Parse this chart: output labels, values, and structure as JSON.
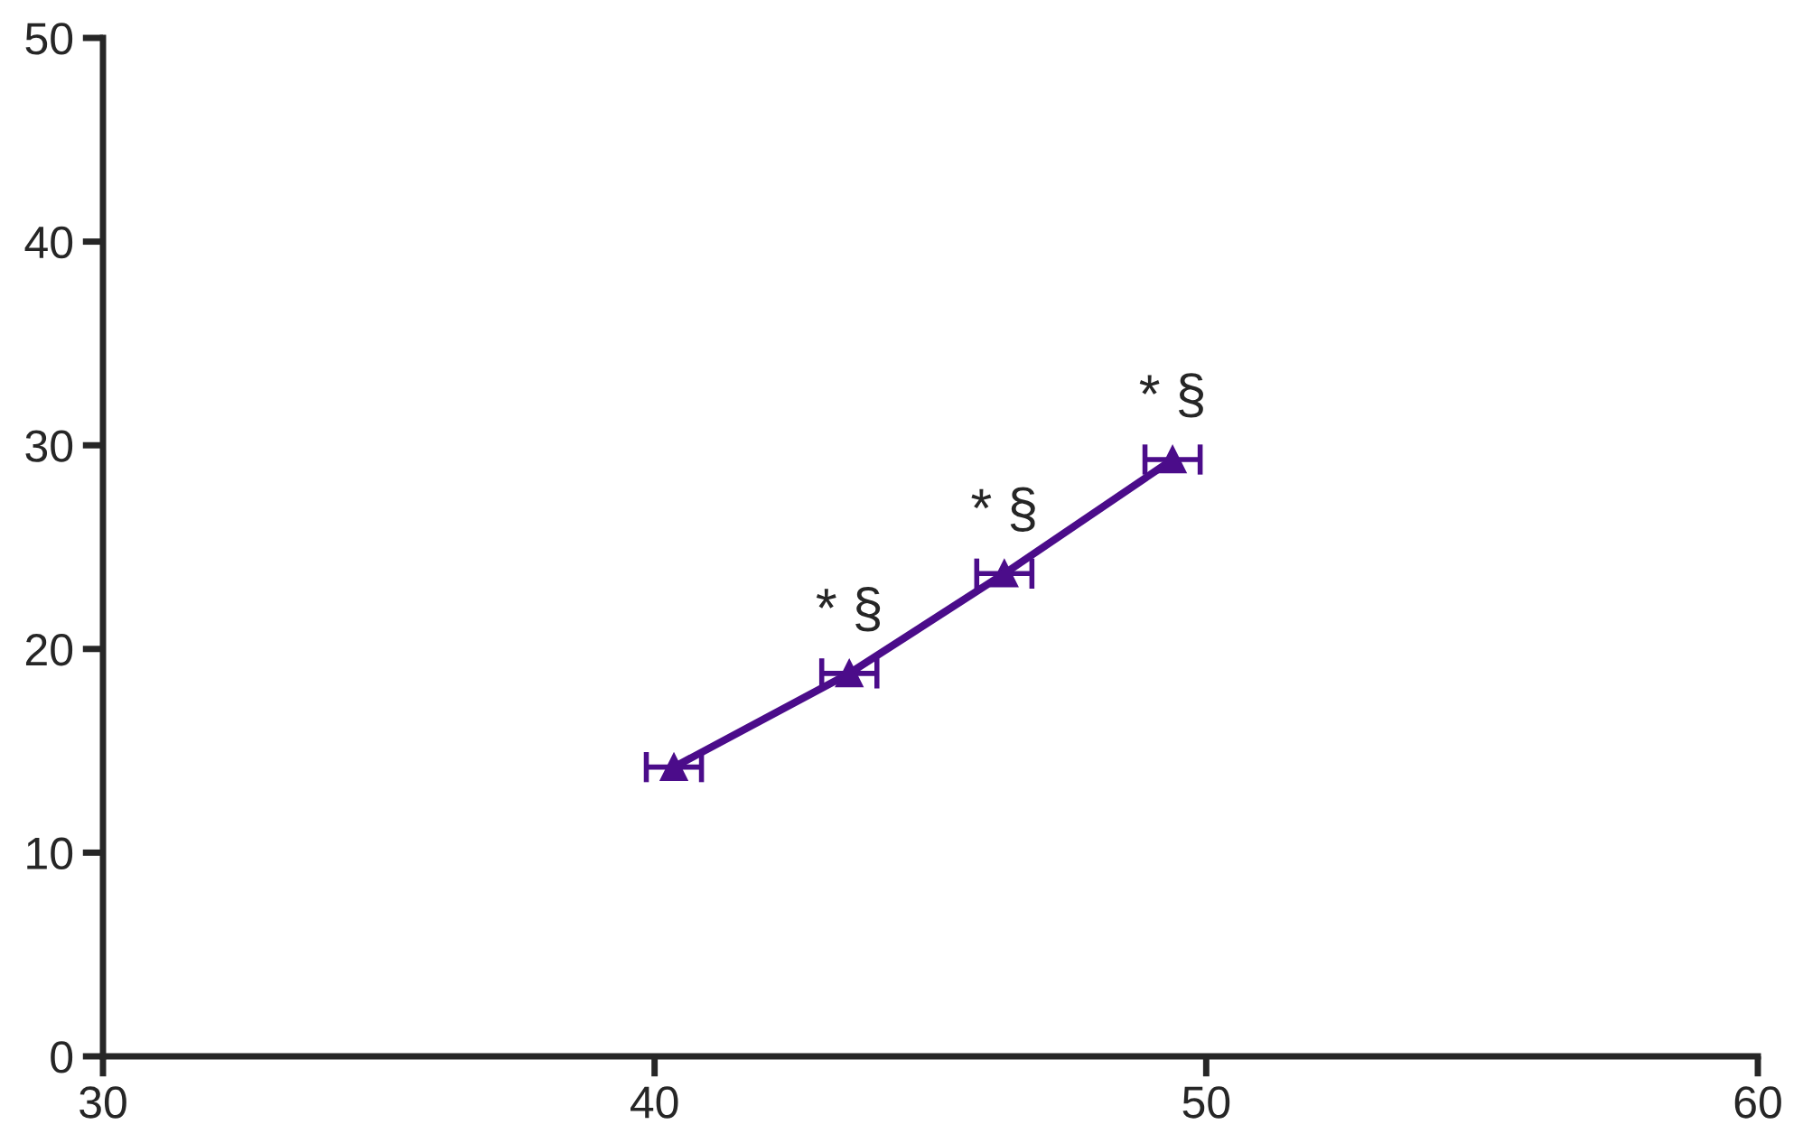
{
  "chart_data": {
    "type": "line",
    "x": [
      40.35,
      43.53,
      46.34,
      49.39
    ],
    "series": [
      {
        "color": "#4b0c8a",
        "values": [
          14.2,
          18.8,
          23.7,
          29.3
        ],
        "xerrors": [
          0.5,
          0.5,
          0.5,
          0.5
        ]
      }
    ],
    "xlim": [
      30,
      60
    ],
    "xticks": [
      30,
      40,
      50,
      60
    ],
    "ylim": [
      0,
      50
    ],
    "yticks": [
      0,
      10,
      20,
      30,
      40,
      50
    ],
    "marker": "triangle",
    "line_style": "solid",
    "grid": false,
    "annotations": [
      {
        "text": "* §",
        "x": 43.53,
        "y": 18.8
      },
      {
        "text": "* §",
        "x": 46.34,
        "y": 23.7
      },
      {
        "text": "* §",
        "x": 49.39,
        "y": 29.3
      }
    ]
  }
}
